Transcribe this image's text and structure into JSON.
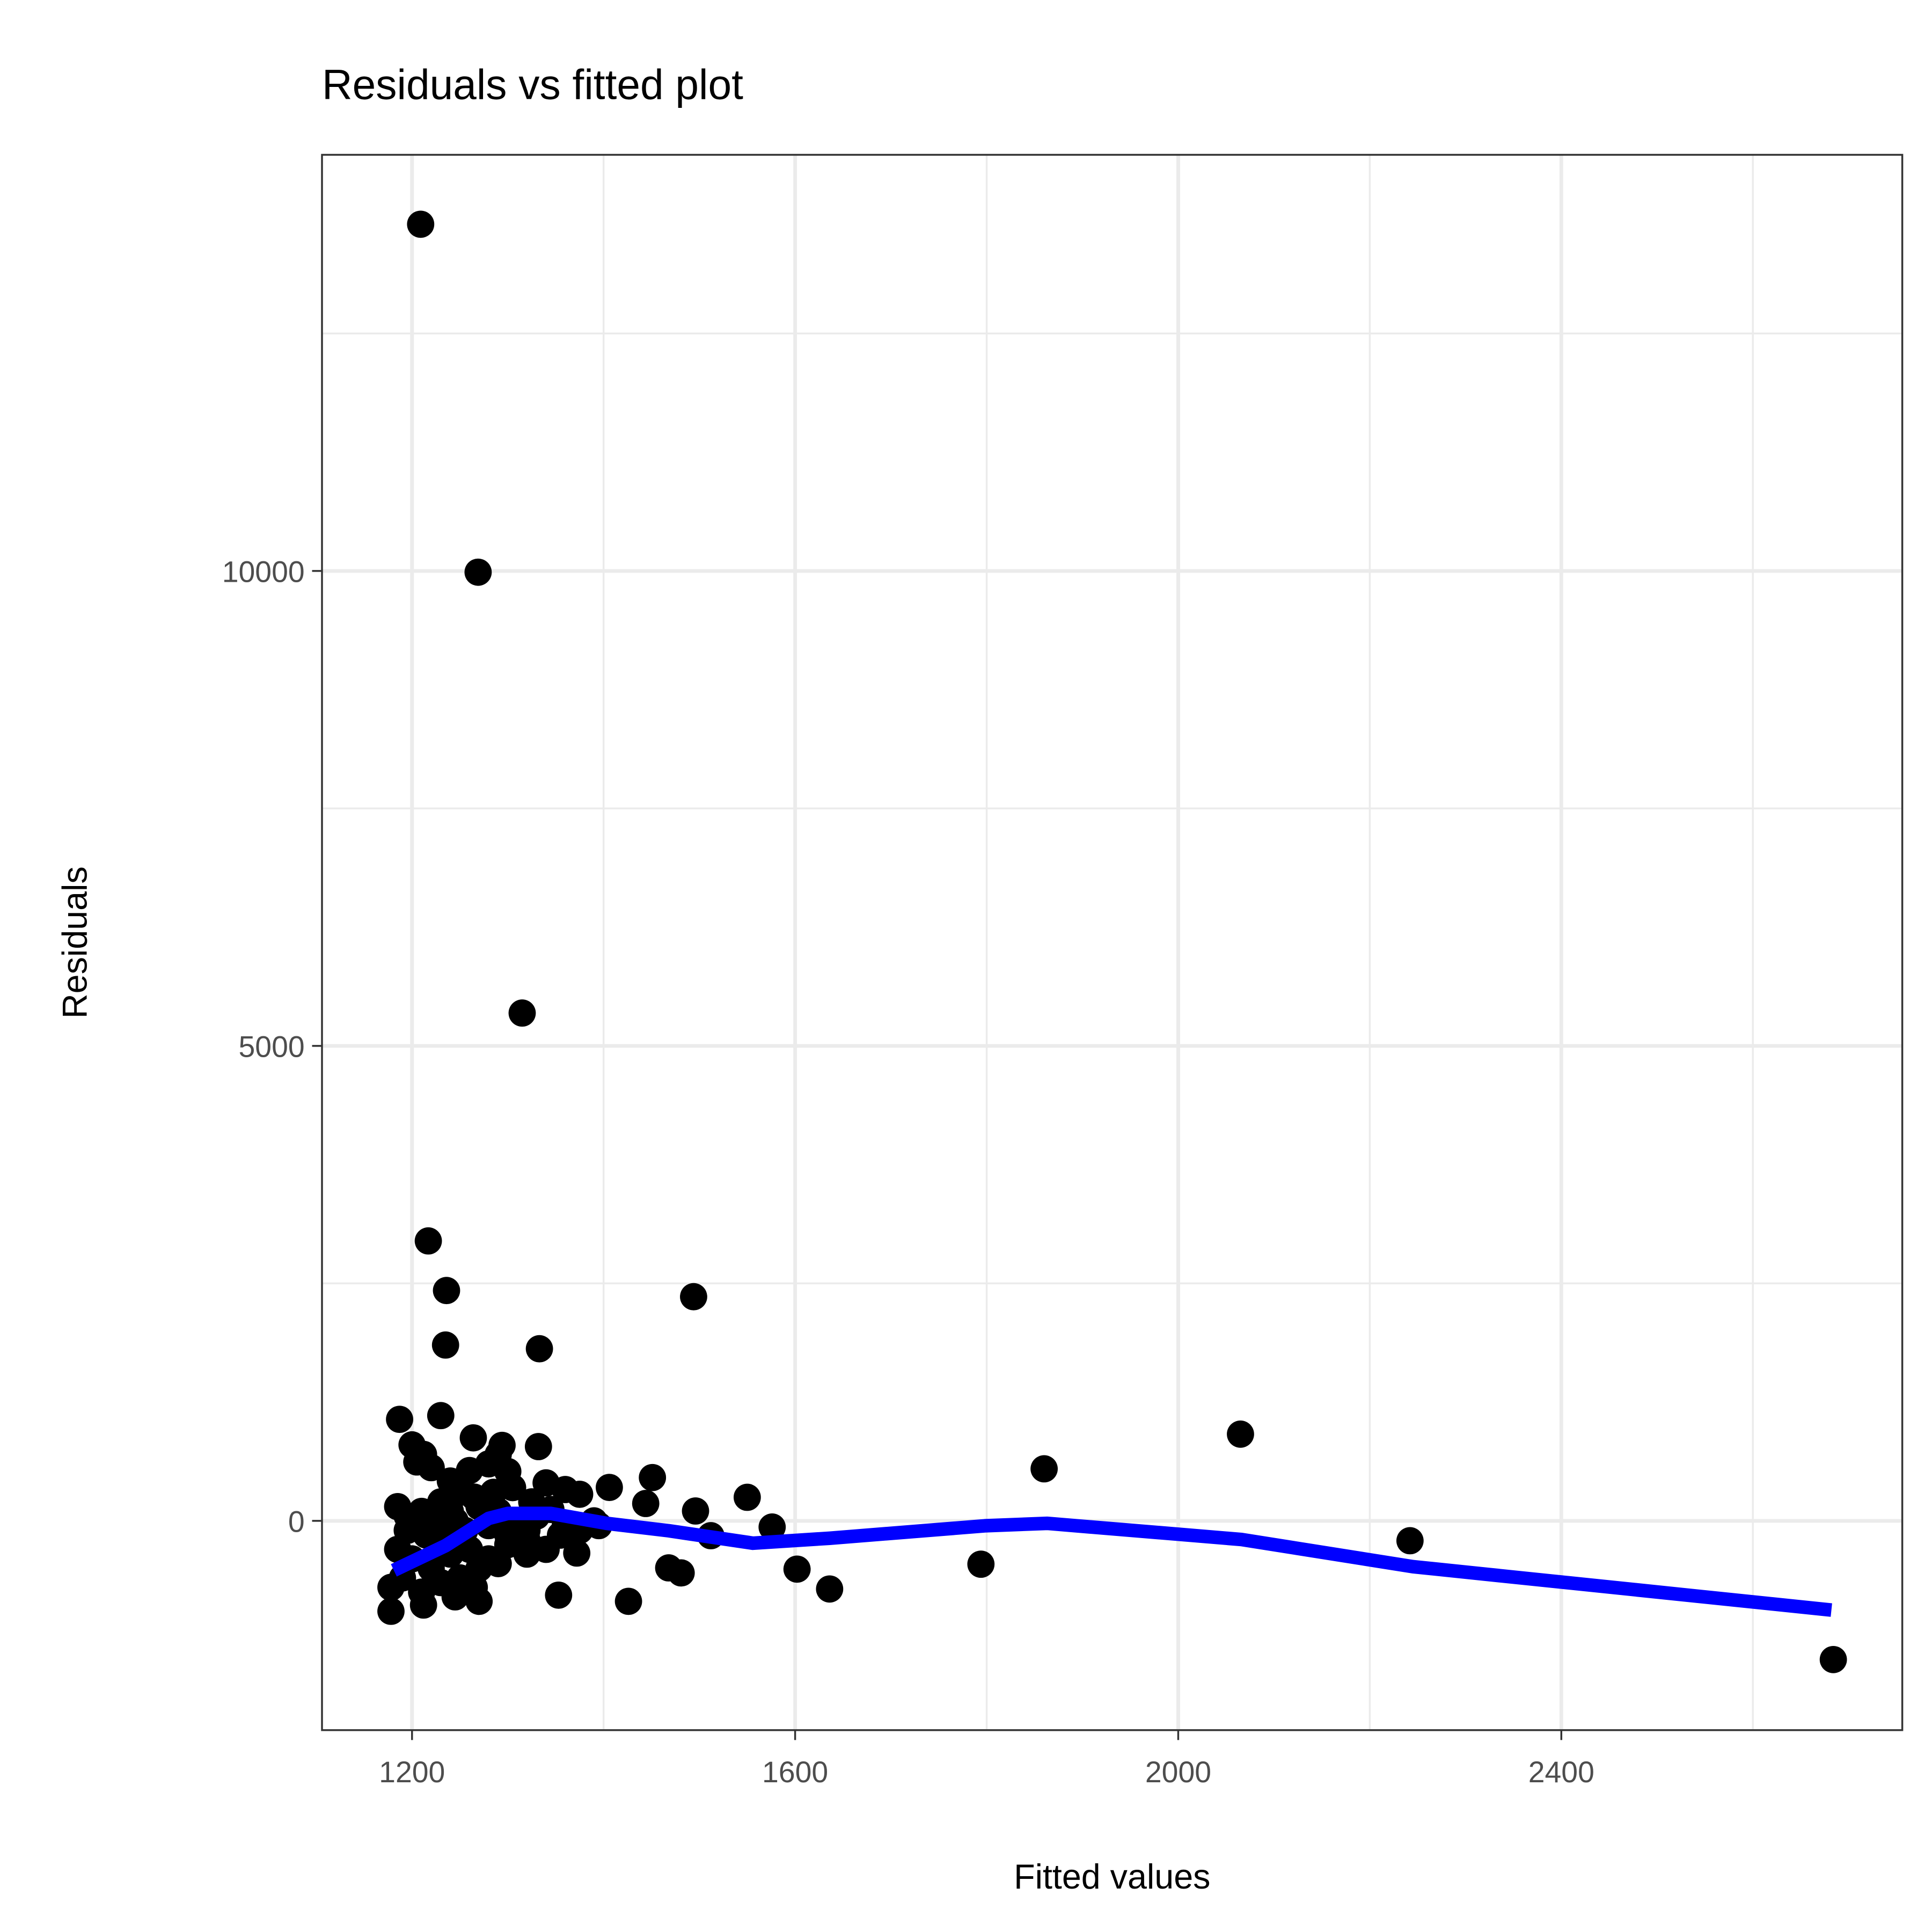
{
  "chart_data": {
    "type": "scatter",
    "title": "Residuals vs fitted plot",
    "xlabel": "Fitted values",
    "ylabel": "Residuals",
    "xlim": [
      1106,
      2756
    ],
    "ylim": [
      -2203,
      14381
    ],
    "xticks": [
      1200,
      1600,
      2000,
      2400
    ],
    "xtick_labels": [
      "1200",
      "1600",
      "2000",
      "2400"
    ],
    "yticks": [
      0,
      5000,
      10000
    ],
    "ytick_labels": [
      "0",
      "5000",
      "10000"
    ],
    "grid": true,
    "point_color": "#000000",
    "smooth_color": "#0000ff",
    "points": [
      [
        1209,
        13650
      ],
      [
        1269,
        9987
      ],
      [
        1315,
        5346
      ],
      [
        1217,
        2947
      ],
      [
        1236,
        2425
      ],
      [
        1235,
        1851
      ],
      [
        1333,
        1812
      ],
      [
        1494,
        2360
      ],
      [
        2065,
        913
      ],
      [
        1860,
        548
      ],
      [
        1230,
        1108
      ],
      [
        1187,
        1069
      ],
      [
        1264,
        874
      ],
      [
        1332,
        782
      ],
      [
        1294,
        795
      ],
      [
        1550,
        248
      ],
      [
        1406,
        352
      ],
      [
        1451,
        456
      ],
      [
        1444,
        183
      ],
      [
        1496,
        104
      ],
      [
        1512,
        -156
      ],
      [
        1576,
        -65
      ],
      [
        1602,
        -508
      ],
      [
        1636,
        -717
      ],
      [
        1794,
        -456
      ],
      [
        2242,
        -209
      ],
      [
        2684,
        -1460
      ],
      [
        1426,
        -847
      ],
      [
        1353,
        -782
      ],
      [
        1481,
        -548
      ],
      [
        1468,
        -495
      ],
      [
        1372,
        -339
      ],
      [
        1270,
        -847
      ],
      [
        1178,
        -952
      ],
      [
        1212,
        -886
      ],
      [
        1200,
        800
      ],
      [
        1212,
        700
      ],
      [
        1220,
        560
      ],
      [
        1205,
        620
      ],
      [
        1240,
        420
      ],
      [
        1260,
        530
      ],
      [
        1280,
        600
      ],
      [
        1300,
        520
      ],
      [
        1290,
        700
      ],
      [
        1250,
        300
      ],
      [
        1230,
        200
      ],
      [
        1210,
        100
      ],
      [
        1195,
        50
      ],
      [
        1185,
        150
      ],
      [
        1240,
        100
      ],
      [
        1265,
        250
      ],
      [
        1285,
        300
      ],
      [
        1305,
        350
      ],
      [
        1325,
        200
      ],
      [
        1340,
        400
      ],
      [
        1360,
        330
      ],
      [
        1375,
        280
      ],
      [
        1390,
        0
      ],
      [
        1345,
        120
      ],
      [
        1320,
        -100
      ],
      [
        1300,
        -150
      ],
      [
        1280,
        -50
      ],
      [
        1255,
        -100
      ],
      [
        1235,
        -200
      ],
      [
        1215,
        -150
      ],
      [
        1195,
        -100
      ],
      [
        1185,
        -300
      ],
      [
        1200,
        -400
      ],
      [
        1220,
        -500
      ],
      [
        1240,
        -350
      ],
      [
        1260,
        -300
      ],
      [
        1280,
        -400
      ],
      [
        1300,
        -250
      ],
      [
        1320,
        -200
      ],
      [
        1340,
        -300
      ],
      [
        1355,
        -150
      ],
      [
        1375,
        -100
      ],
      [
        1190,
        -600
      ],
      [
        1178,
        -700
      ],
      [
        1230,
        -650
      ],
      [
        1250,
        -600
      ],
      [
        1270,
        -500
      ],
      [
        1290,
        -450
      ],
      [
        1210,
        -750
      ],
      [
        1245,
        -800
      ],
      [
        1265,
        -700
      ],
      [
        1320,
        -350
      ],
      [
        1395,
        -50
      ],
      [
        1360,
        -50
      ],
      [
        1330,
        50
      ],
      [
        1225,
        -50
      ],
      [
        1245,
        0
      ],
      [
        1270,
        150
      ],
      [
        1290,
        100
      ],
      [
        1310,
        0
      ]
    ],
    "smooth_line": [
      [
        1181,
        -521
      ],
      [
        1235,
        -261
      ],
      [
        1280,
        26
      ],
      [
        1300,
        78
      ],
      [
        1345,
        78
      ],
      [
        1403,
        -26
      ],
      [
        1468,
        -104
      ],
      [
        1556,
        -235
      ],
      [
        1636,
        -183
      ],
      [
        1798,
        -52
      ],
      [
        1863,
        -26
      ],
      [
        2066,
        -196
      ],
      [
        2245,
        -482
      ],
      [
        2682,
        -939
      ]
    ]
  }
}
